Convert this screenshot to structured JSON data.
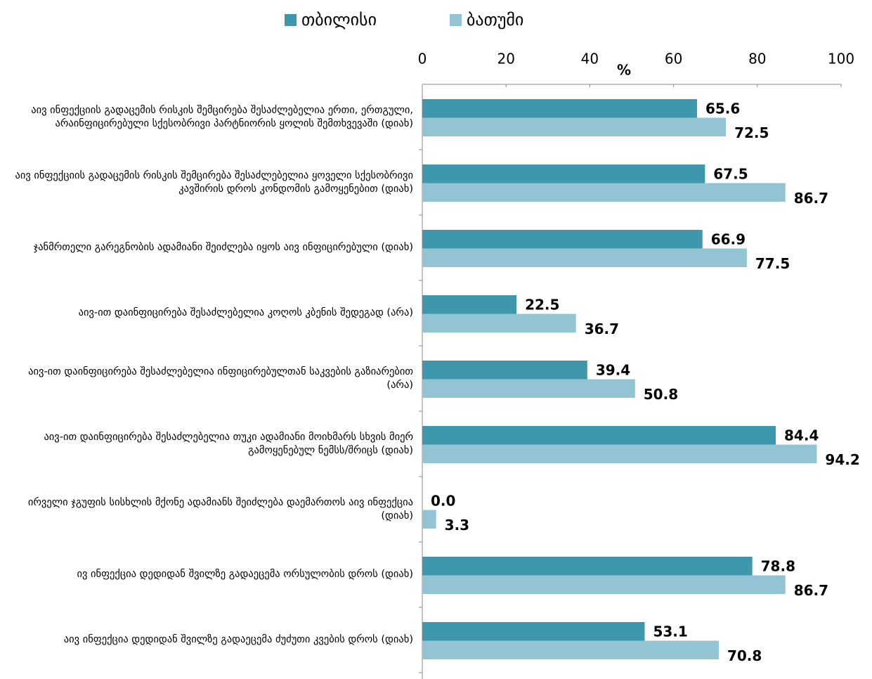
{
  "chart_data": {
    "type": "bar",
    "orientation": "horizontal",
    "categories": [
      "აივ ინფექციის გადაცემის რისკის შემცირება შესაძლებელია ერთი, ერთგული, არაინფიცირებული სქესობრივი პარტნიორის ყოლის შემთხვევაში (დიახ)",
      "აივ ინფექციის გადაცემის რისკის შემცირება შესაძლებელია ყოველი სქესობრივი კავშირის დროს კონდომის გამოყენებით (დიახ)",
      "ჯანმრთელი გარეგნობის ადამიანი შეიძლება იყოს აივ ინფიცირებული (დიახ)",
      "აივ-ით დაინფიცირება შესაძლებელია კოღოს კბენის შედეგად (არა)",
      "აივ-ით დაინფიცირება შესაძლებელია ინფიცირებულთან საკვების გაზიარებით (არა)",
      "აივ-ით დაინფიცირება შესაძლებელია თუკი ადამიანი მოიხმარს სხვის მიერ გამოყენებულ ნემსს/შრიცს (დიახ)",
      "ირველი ჯგუფის სისხლის მქონე ადამიანს შეიძლება დაემართოს აივ ინფექცია (დიახ)",
      "ივ ინფექცია დედიდან შვილზე გადაეცემა ორსულობის დროს (დიახ)",
      "აივ ინფექცია დედიდან შვილზე გადაეცემა ძუძუთი კვების დროს (დიახ)"
    ],
    "series": [
      {
        "name": "თბილისი",
        "color": "#3f97ab",
        "values": [
          65.6,
          67.5,
          66.9,
          22.5,
          39.4,
          84.4,
          0,
          78.8,
          53.1
        ],
        "value_labels": [
          "65.6",
          "67.5",
          "66.9",
          "22.5",
          "39.4",
          "84.4",
          "0.0",
          "78.8",
          "53.1"
        ]
      },
      {
        "name": "ბათუმი",
        "color": "#93c4d4",
        "values": [
          72.5,
          86.7,
          77.5,
          36.7,
          50.8,
          94.2,
          3.3,
          86.7,
          70.8
        ],
        "value_labels": [
          "72.5",
          "86.7",
          "77.5",
          "36.7",
          "50.8",
          "94.2",
          "3.3",
          "86.7",
          "70.8"
        ]
      }
    ],
    "xlabel": "%",
    "xlim": [
      0,
      100
    ],
    "xticks": [
      0,
      20,
      40,
      60,
      80,
      100
    ],
    "legend": "top"
  }
}
